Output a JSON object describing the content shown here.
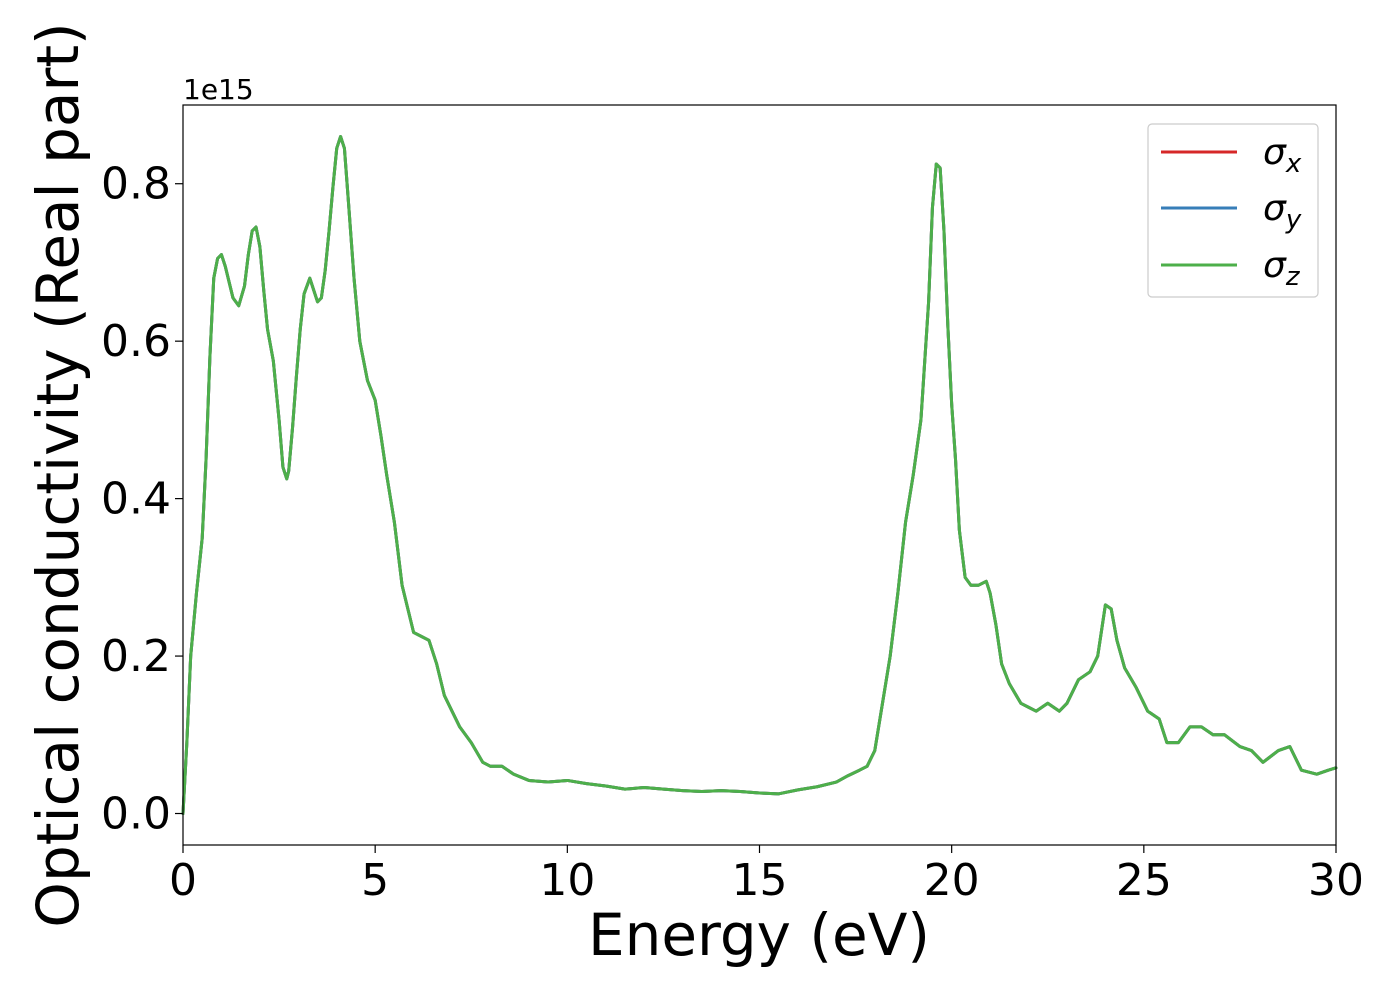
{
  "chart_data": {
    "type": "line",
    "xlabel": "Energy (eV)",
    "ylabel": "Optical conductivity (Real part)",
    "offset_text": "1e15",
    "xlim": [
      0,
      30
    ],
    "ylim": [
      -0.04,
      0.9
    ],
    "xticks": [
      0,
      5,
      10,
      15,
      20,
      25,
      30
    ],
    "xtick_labels": [
      "0",
      "5",
      "10",
      "15",
      "20",
      "25",
      "30"
    ],
    "yticks": [
      0.0,
      0.2,
      0.4,
      0.6,
      0.8
    ],
    "ytick_labels": [
      "0.0",
      "0.2",
      "0.4",
      "0.6",
      "0.8"
    ],
    "grid": false,
    "legend_position": "top-right",
    "x": [
      0,
      0.1,
      0.2,
      0.35,
      0.5,
      0.6,
      0.7,
      0.8,
      0.9,
      1.0,
      1.1,
      1.2,
      1.3,
      1.45,
      1.6,
      1.7,
      1.8,
      1.9,
      2.0,
      2.1,
      2.2,
      2.35,
      2.5,
      2.6,
      2.7,
      2.75,
      2.85,
      2.95,
      3.05,
      3.15,
      3.3,
      3.4,
      3.5,
      3.6,
      3.7,
      3.8,
      3.9,
      4.0,
      4.1,
      4.2,
      4.3,
      4.45,
      4.6,
      4.8,
      5.0,
      5.15,
      5.3,
      5.5,
      5.7,
      5.85,
      6.0,
      6.2,
      6.4,
      6.6,
      6.8,
      7.0,
      7.2,
      7.5,
      7.8,
      8.0,
      8.3,
      8.6,
      9.0,
      9.5,
      10.0,
      10.5,
      11.0,
      11.5,
      12.0,
      12.5,
      13.0,
      13.5,
      14.0,
      14.5,
      15.0,
      15.5,
      16.0,
      16.5,
      17.0,
      17.3,
      17.6,
      17.8,
      18.0,
      18.2,
      18.4,
      18.6,
      18.8,
      19.0,
      19.2,
      19.4,
      19.5,
      19.6,
      19.7,
      19.8,
      19.9,
      20.0,
      20.1,
      20.2,
      20.35,
      20.5,
      20.7,
      20.9,
      21.0,
      21.15,
      21.3,
      21.5,
      21.8,
      22.0,
      22.2,
      22.5,
      22.8,
      23.0,
      23.3,
      23.6,
      23.8,
      24.0,
      24.15,
      24.3,
      24.5,
      24.8,
      25.1,
      25.4,
      25.6,
      25.9,
      26.2,
      26.5,
      26.8,
      27.1,
      27.5,
      27.8,
      28.1,
      28.5,
      28.8,
      29.1,
      29.5,
      29.8,
      30.0
    ],
    "series": [
      {
        "name": "σx",
        "color": "#d62728",
        "y": [
          0.0,
          0.09,
          0.2,
          0.28,
          0.35,
          0.45,
          0.58,
          0.68,
          0.705,
          0.71,
          0.695,
          0.675,
          0.655,
          0.645,
          0.67,
          0.71,
          0.74,
          0.745,
          0.72,
          0.665,
          0.615,
          0.575,
          0.5,
          0.44,
          0.425,
          0.435,
          0.49,
          0.555,
          0.615,
          0.66,
          0.68,
          0.665,
          0.65,
          0.655,
          0.69,
          0.74,
          0.795,
          0.845,
          0.86,
          0.845,
          0.78,
          0.68,
          0.6,
          0.55,
          0.525,
          0.48,
          0.43,
          0.37,
          0.29,
          0.26,
          0.23,
          0.225,
          0.22,
          0.19,
          0.15,
          0.13,
          0.11,
          0.09,
          0.065,
          0.06,
          0.06,
          0.05,
          0.042,
          0.04,
          0.042,
          0.038,
          0.035,
          0.031,
          0.033,
          0.031,
          0.029,
          0.028,
          0.029,
          0.028,
          0.026,
          0.025,
          0.03,
          0.034,
          0.04,
          0.048,
          0.055,
          0.06,
          0.08,
          0.14,
          0.2,
          0.28,
          0.37,
          0.43,
          0.5,
          0.65,
          0.77,
          0.825,
          0.82,
          0.74,
          0.62,
          0.52,
          0.45,
          0.36,
          0.3,
          0.29,
          0.29,
          0.295,
          0.28,
          0.24,
          0.19,
          0.165,
          0.14,
          0.135,
          0.13,
          0.14,
          0.13,
          0.14,
          0.17,
          0.18,
          0.2,
          0.265,
          0.26,
          0.22,
          0.185,
          0.16,
          0.13,
          0.12,
          0.09,
          0.09,
          0.11,
          0.11,
          0.1,
          0.1,
          0.085,
          0.08,
          0.065,
          0.08,
          0.085,
          0.055,
          0.05,
          0.055,
          0.058
        ]
      },
      {
        "name": "σy",
        "color": "#377eb8",
        "y": [
          0.0,
          0.09,
          0.2,
          0.28,
          0.35,
          0.45,
          0.58,
          0.68,
          0.705,
          0.71,
          0.695,
          0.675,
          0.655,
          0.645,
          0.67,
          0.71,
          0.74,
          0.745,
          0.72,
          0.665,
          0.615,
          0.575,
          0.5,
          0.44,
          0.425,
          0.435,
          0.49,
          0.555,
          0.615,
          0.66,
          0.68,
          0.665,
          0.65,
          0.655,
          0.69,
          0.74,
          0.795,
          0.845,
          0.86,
          0.845,
          0.78,
          0.68,
          0.6,
          0.55,
          0.525,
          0.48,
          0.43,
          0.37,
          0.29,
          0.26,
          0.23,
          0.225,
          0.22,
          0.19,
          0.15,
          0.13,
          0.11,
          0.09,
          0.065,
          0.06,
          0.06,
          0.05,
          0.042,
          0.04,
          0.042,
          0.038,
          0.035,
          0.031,
          0.033,
          0.031,
          0.029,
          0.028,
          0.029,
          0.028,
          0.026,
          0.025,
          0.03,
          0.034,
          0.04,
          0.048,
          0.055,
          0.06,
          0.08,
          0.14,
          0.2,
          0.28,
          0.37,
          0.43,
          0.5,
          0.65,
          0.77,
          0.825,
          0.82,
          0.74,
          0.62,
          0.52,
          0.45,
          0.36,
          0.3,
          0.29,
          0.29,
          0.295,
          0.28,
          0.24,
          0.19,
          0.165,
          0.14,
          0.135,
          0.13,
          0.14,
          0.13,
          0.14,
          0.17,
          0.18,
          0.2,
          0.265,
          0.26,
          0.22,
          0.185,
          0.16,
          0.13,
          0.12,
          0.09,
          0.09,
          0.11,
          0.11,
          0.1,
          0.1,
          0.085,
          0.08,
          0.065,
          0.08,
          0.085,
          0.055,
          0.05,
          0.055,
          0.058
        ]
      },
      {
        "name": "σz",
        "color": "#4daf4a",
        "y": [
          0.0,
          0.09,
          0.2,
          0.28,
          0.35,
          0.45,
          0.58,
          0.68,
          0.705,
          0.71,
          0.695,
          0.675,
          0.655,
          0.645,
          0.67,
          0.71,
          0.74,
          0.745,
          0.72,
          0.665,
          0.615,
          0.575,
          0.5,
          0.44,
          0.425,
          0.435,
          0.49,
          0.555,
          0.615,
          0.66,
          0.68,
          0.665,
          0.65,
          0.655,
          0.69,
          0.74,
          0.795,
          0.845,
          0.86,
          0.845,
          0.78,
          0.68,
          0.6,
          0.55,
          0.525,
          0.48,
          0.43,
          0.37,
          0.29,
          0.26,
          0.23,
          0.225,
          0.22,
          0.19,
          0.15,
          0.13,
          0.11,
          0.09,
          0.065,
          0.06,
          0.06,
          0.05,
          0.042,
          0.04,
          0.042,
          0.038,
          0.035,
          0.031,
          0.033,
          0.031,
          0.029,
          0.028,
          0.029,
          0.028,
          0.026,
          0.025,
          0.03,
          0.034,
          0.04,
          0.048,
          0.055,
          0.06,
          0.08,
          0.14,
          0.2,
          0.28,
          0.37,
          0.43,
          0.5,
          0.65,
          0.77,
          0.825,
          0.82,
          0.74,
          0.62,
          0.52,
          0.45,
          0.36,
          0.3,
          0.29,
          0.29,
          0.295,
          0.28,
          0.24,
          0.19,
          0.165,
          0.14,
          0.135,
          0.13,
          0.14,
          0.13,
          0.14,
          0.17,
          0.18,
          0.2,
          0.265,
          0.26,
          0.22,
          0.185,
          0.16,
          0.13,
          0.12,
          0.09,
          0.09,
          0.11,
          0.11,
          0.1,
          0.1,
          0.085,
          0.08,
          0.065,
          0.08,
          0.085,
          0.055,
          0.05,
          0.055,
          0.058
        ]
      }
    ],
    "legend": [
      {
        "symbol": "σ",
        "subscript": "x",
        "color": "#d62728"
      },
      {
        "symbol": "σ",
        "subscript": "y",
        "color": "#377eb8"
      },
      {
        "symbol": "σ",
        "subscript": "z",
        "color": "#4daf4a"
      }
    ]
  }
}
